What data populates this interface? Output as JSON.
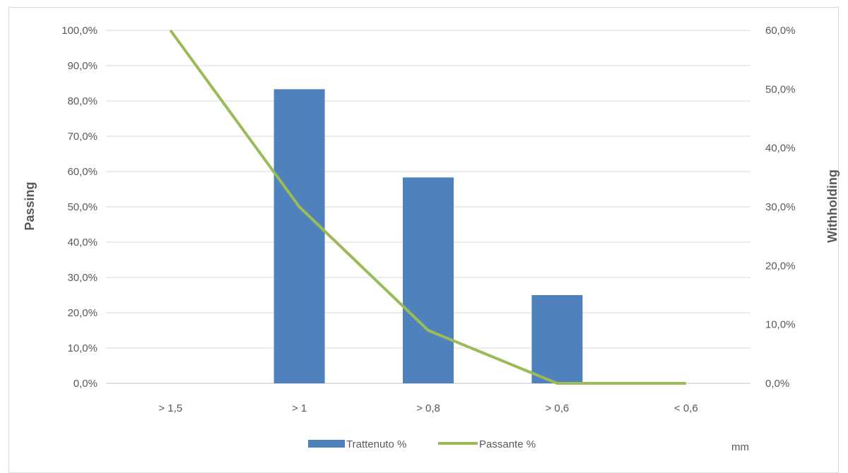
{
  "chart_data": {
    "type": "bar",
    "categories": [
      "> 1,5",
      "> 1",
      "> 0,8",
      "> 0,6",
      "< 0,6"
    ],
    "series": [
      {
        "name": "Trattenuto %",
        "type": "bar",
        "axis": "right",
        "values": [
          0,
          50.0,
          35.0,
          15.0,
          0
        ],
        "color": "#4f81bd"
      },
      {
        "name": "Passante %",
        "type": "line",
        "axis": "left",
        "values": [
          100.0,
          50.0,
          15.0,
          0.0,
          0.0
        ],
        "color": "#9bbb59"
      }
    ],
    "ylabel": "Passing",
    "y2label": "Withholding",
    "xlabel": "mm",
    "ylim": [
      0,
      100
    ],
    "y2lim": [
      0,
      60
    ],
    "yticks": [
      "0,0%",
      "10,0%",
      "20,0%",
      "30,0%",
      "40,0%",
      "50,0%",
      "60,0%",
      "70,0%",
      "80,0%",
      "90,0%",
      "100,0%"
    ],
    "y2ticks": [
      "0,0%",
      "10,0%",
      "20,0%",
      "30,0%",
      "40,0%",
      "50,0%",
      "60,0%"
    ],
    "grid": true,
    "legend_position": "bottom"
  }
}
